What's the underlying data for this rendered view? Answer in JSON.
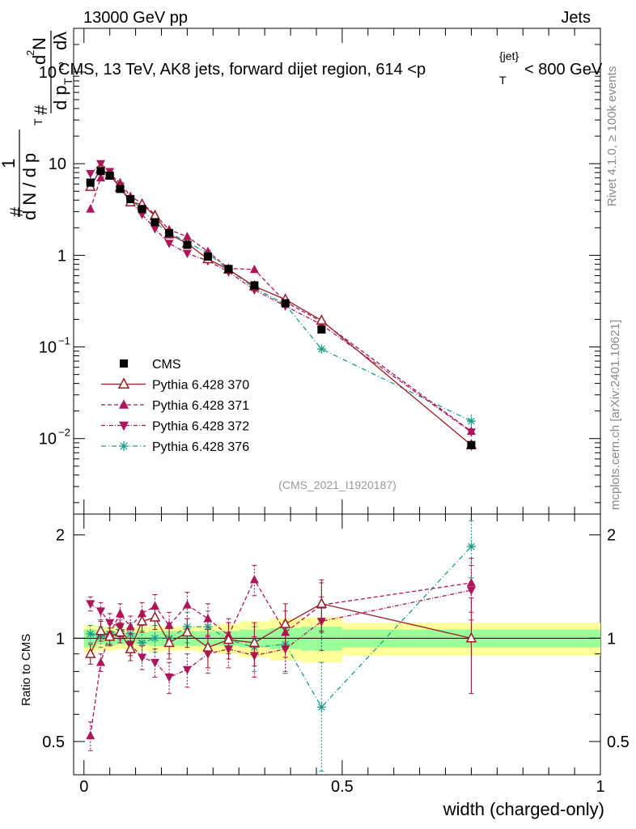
{
  "header": {
    "energy_label": "13000 GeV pp",
    "category_label": "Jets"
  },
  "side_labels": {
    "rivet": "Rivet 4.1.0, ≥ 100k events",
    "mcplots": "mcplots.cern.ch [arXiv:2401.10621]"
  },
  "chart_data": {
    "type": "scatter",
    "title": "CMS, 13 TeV, AK8 jets, forward dijet region, 614 <p_T^{jet}< 800 GeV",
    "title_parts": {
      "prefix": "CMS, 13 TeV, AK8 jets, forward dijet region, 614 <p",
      "sup": "{jet}",
      "sub": "T",
      "suffix": "< 800 GeV"
    },
    "analysis_id": "(CMS_2021_I1920187)",
    "xlabel": "width (charged-only)",
    "ylabel_parts": [
      "#",
      "1",
      "d N / d p",
      "T",
      "#",
      "d p",
      "T",
      "d",
      "2",
      "N",
      "d",
      "λ"
    ],
    "ratio_ylabel": "Ratio to CMS",
    "xlim": [
      -0.02,
      1.0
    ],
    "ylim_main": [
      0.0015,
      300
    ],
    "ylim_ratio": [
      0.4,
      2.3
    ],
    "x_ticks": [
      {
        "value": 0,
        "label": "0"
      },
      {
        "value": 0.5,
        "label": "0.5"
      },
      {
        "value": 1,
        "label": "1"
      }
    ],
    "main_y_ticks": [
      {
        "value": 0.01,
        "base": "10",
        "exp": "−2"
      },
      {
        "value": 0.1,
        "base": "10",
        "exp": "−1"
      },
      {
        "value": 1,
        "base": "1",
        "exp": ""
      },
      {
        "value": 10,
        "base": "10",
        "exp": ""
      },
      {
        "value": 100,
        "base": "10",
        "exp": "2"
      }
    ],
    "ratio_y_ticks": [
      {
        "value": 0.5,
        "label": "0.5"
      },
      {
        "value": 1,
        "label": "1"
      },
      {
        "value": 2,
        "label": "2"
      }
    ],
    "bin_edges": [
      0,
      0.025,
      0.04,
      0.06,
      0.08,
      0.1,
      0.125,
      0.15,
      0.18,
      0.22,
      0.26,
      0.3,
      0.36,
      0.42,
      0.5,
      1.0
    ],
    "band_inner": [
      0.06,
      0.04,
      0.05,
      0.04,
      0.04,
      0.04,
      0.05,
      0.05,
      0.05,
      0.05,
      0.05,
      0.06,
      0.07,
      0.08,
      0.06
    ],
    "band_outer": [
      0.09,
      0.08,
      0.08,
      0.07,
      0.08,
      0.08,
      0.09,
      0.08,
      0.08,
      0.09,
      0.1,
      0.12,
      0.14,
      0.15,
      0.11
    ],
    "x": [
      0.0125,
      0.0325,
      0.05,
      0.07,
      0.09,
      0.1125,
      0.1375,
      0.165,
      0.2,
      0.24,
      0.28,
      0.33,
      0.39,
      0.46,
      0.75
    ],
    "series": [
      {
        "name": "CMS",
        "color": "#000000",
        "marker": "square",
        "dash": "",
        "values": [
          6.2,
          8.3,
          7.4,
          5.3,
          4.1,
          3.2,
          2.3,
          1.75,
          1.3,
          0.97,
          0.71,
          0.47,
          0.3,
          0.155,
          0.0085
        ],
        "rel_err": [
          0.03,
          0.03,
          0.03,
          0.03,
          0.03,
          0.03,
          0.03,
          0.03,
          0.03,
          0.04,
          0.04,
          0.05,
          0.06,
          0.08,
          0.06
        ]
      },
      {
        "name": "Pythia 6.428 370",
        "color": "#9b1c24",
        "marker": "triangle-open",
        "dash": "",
        "values": [
          5.6,
          8.7,
          7.5,
          5.5,
          3.8,
          3.6,
          2.7,
          1.7,
          1.35,
          0.91,
          0.7,
          0.46,
          0.33,
          0.195,
          0.0085
        ],
        "ratio": [
          0.9,
          1.05,
          1.01,
          1.04,
          0.93,
          1.12,
          1.15,
          0.97,
          1.04,
          0.94,
          0.99,
          0.97,
          1.1,
          1.26,
          1.0
        ],
        "ratio_err": [
          0.06,
          0.07,
          0.06,
          0.07,
          0.07,
          0.08,
          0.09,
          0.1,
          0.1,
          0.12,
          0.12,
          0.14,
          0.16,
          0.22,
          0.31
        ]
      },
      {
        "name": "Pythia 6.428 371",
        "color": "#b0145a",
        "marker": "triangle-up",
        "dash": "5,3",
        "values": [
          3.2,
          7.0,
          7.6,
          6.2,
          4.4,
          3.7,
          2.8,
          1.9,
          1.6,
          1.1,
          0.72,
          0.7,
          0.31,
          0.19,
          0.012
        ],
        "ratio": [
          0.52,
          0.85,
          1.03,
          1.18,
          1.08,
          1.18,
          1.24,
          1.09,
          1.25,
          1.14,
          1.02,
          1.48,
          1.04,
          1.25,
          1.45
        ],
        "ratio_err": [
          0.05,
          0.05,
          0.07,
          0.08,
          0.08,
          0.09,
          0.1,
          0.1,
          0.11,
          0.12,
          0.12,
          0.15,
          0.16,
          0.2,
          0.26
        ]
      },
      {
        "name": "Pythia 6.428 372",
        "color": "#b0145a",
        "marker": "triangle-down",
        "dash": "5,2,1,2",
        "values": [
          7.8,
          10.0,
          8.2,
          5.7,
          3.9,
          2.8,
          1.95,
          1.35,
          1.05,
          0.87,
          0.66,
          0.42,
          0.28,
          0.175,
          0.0118
        ],
        "ratio": [
          1.26,
          1.2,
          1.11,
          1.08,
          0.96,
          0.88,
          0.85,
          0.77,
          0.81,
          0.9,
          0.93,
          0.89,
          0.93,
          1.12,
          1.38
        ],
        "ratio_err": [
          0.06,
          0.07,
          0.07,
          0.07,
          0.07,
          0.07,
          0.08,
          0.08,
          0.09,
          0.11,
          0.11,
          0.12,
          0.14,
          0.2,
          0.25
        ]
      },
      {
        "name": "Pythia 6.428 376",
        "color": "#1a9e8a",
        "marker": "star",
        "dash": "6,3,1,3",
        "values": [
          6.4,
          8.4,
          7.6,
          5.6,
          4.2,
          3.1,
          2.3,
          1.75,
          1.4,
          1.05,
          0.7,
          0.44,
          0.29,
          0.095,
          0.0155
        ],
        "ratio": [
          1.03,
          1.01,
          1.03,
          1.06,
          1.03,
          0.97,
          1.0,
          1.0,
          1.08,
          1.08,
          0.99,
          0.94,
          0.96,
          0.63,
          1.85
        ],
        "ratio_err": [
          0.06,
          0.07,
          0.07,
          0.07,
          0.08,
          0.08,
          0.09,
          0.1,
          0.11,
          0.12,
          0.12,
          0.14,
          0.16,
          0.22,
          0.35
        ]
      }
    ]
  }
}
